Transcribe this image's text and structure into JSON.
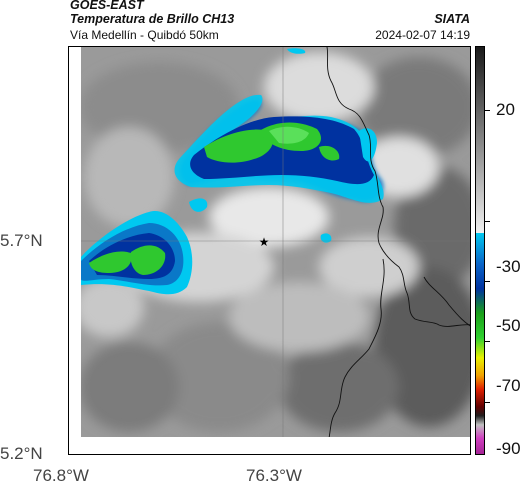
{
  "header": {
    "satellite": "GOES-EAST",
    "product": "Temperatura de Brillo CH13",
    "route": "Vía Medellín - Quibdó 50km",
    "org": "SIATA",
    "datetime": "2024-02-07 14:19"
  },
  "axes": {
    "y_labels": [
      "5.7°N",
      "5.2°N"
    ],
    "x_labels": [
      "76.8°W",
      "76.3°W"
    ]
  },
  "colorbar": {
    "labels": [
      "20",
      "-30",
      "-50",
      "-70",
      "-90"
    ]
  },
  "marker": {
    "icon": "star-icon"
  },
  "colors": {
    "cyan": "#00c8f0",
    "blue": "#0032a0",
    "green": "#2ecc2e",
    "gray_dark": "#3a3a3a",
    "gray_light": "#e6e6e6"
  }
}
